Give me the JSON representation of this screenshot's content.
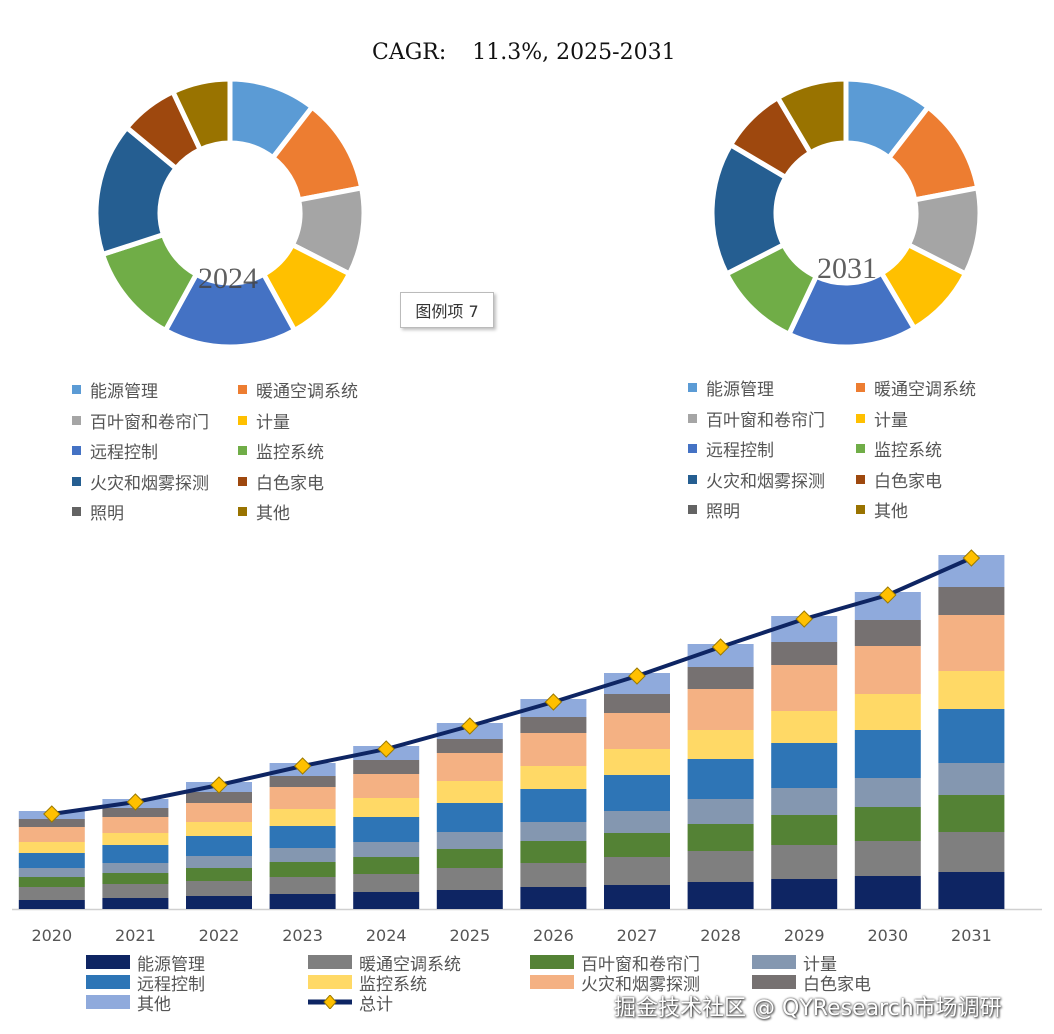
{
  "cagr": {
    "label": "CAGR:",
    "value": "11.3%, 2025-2031"
  },
  "tooltip": "图例项 7",
  "watermark": "掘金技术社区 @ QYResearch市场调研",
  "donut_legend": [
    {
      "label": "能源管理",
      "color": "#5b9bd5"
    },
    {
      "label": "暖通空调系统",
      "color": "#ed7d31"
    },
    {
      "label": "百叶窗和卷帘门",
      "color": "#a5a5a5"
    },
    {
      "label": "计量",
      "color": "#ffc000"
    },
    {
      "label": "远程控制",
      "color": "#4472c4"
    },
    {
      "label": "监控系统",
      "color": "#70ad47"
    },
    {
      "label": "火灾和烟雾探测",
      "color": "#255e91"
    },
    {
      "label": "白色家电",
      "color": "#9e480e"
    },
    {
      "label": "照明",
      "color": "#636363"
    },
    {
      "label": "其他",
      "color": "#997300"
    }
  ],
  "chart_data": [
    {
      "type": "pie",
      "title": "2024",
      "labels": [
        "能源管理",
        "暖通空调系统",
        "百叶窗和卷帘门",
        "计量",
        "远程控制",
        "监控系统",
        "火灾和烟雾探测",
        "白色家电",
        "照明",
        "其他"
      ],
      "values": [
        10.5,
        11.5,
        10.5,
        9.5,
        16,
        12,
        16,
        7,
        0,
        7
      ]
    },
    {
      "type": "pie",
      "title": "2031",
      "labels": [
        "能源管理",
        "暖通空调系统",
        "百叶窗和卷帘门",
        "计量",
        "远程控制",
        "监控系统",
        "火灾和烟雾探测",
        "白色家电",
        "照明",
        "其他"
      ],
      "values": [
        10.5,
        11.5,
        10.5,
        9,
        15.5,
        10.5,
        16,
        8,
        0,
        8.5
      ]
    },
    {
      "type": "bar",
      "stacked": true,
      "categories": [
        "2020",
        "2021",
        "2022",
        "2023",
        "2024",
        "2025",
        "2026",
        "2027",
        "2028",
        "2029",
        "2030",
        "2031"
      ],
      "series": [
        {
          "name": "能源管理",
          "color": "#0e2563",
          "values": [
            9,
            11,
            13,
            15,
            17,
            19,
            22,
            24,
            27,
            30,
            33,
            37
          ]
        },
        {
          "name": "暖通空调系统",
          "color": "#7f7f7f",
          "values": [
            13,
            14,
            15,
            17,
            18,
            22,
            24,
            28,
            31,
            34,
            35,
            40
          ]
        },
        {
          "name": "百叶窗和卷帘门",
          "color": "#548235",
          "values": [
            10,
            11,
            13,
            15,
            17,
            19,
            22,
            24,
            27,
            30,
            34,
            37
          ]
        },
        {
          "name": "计量",
          "color": "#8497b0",
          "values": [
            9,
            10,
            12,
            14,
            15,
            17,
            19,
            22,
            25,
            27,
            29,
            32
          ]
        },
        {
          "name": "远程控制",
          "color": "#2e75b6",
          "values": [
            15,
            18,
            20,
            22,
            25,
            29,
            33,
            36,
            40,
            45,
            48,
            54
          ]
        },
        {
          "name": "监控系统",
          "color": "#ffd966",
          "values": [
            11,
            12,
            14,
            17,
            19,
            22,
            23,
            26,
            29,
            32,
            36,
            38
          ]
        },
        {
          "name": "火灾和烟雾探测",
          "color": "#f4b183",
          "values": [
            15,
            16,
            19,
            22,
            24,
            28,
            33,
            36,
            41,
            46,
            48,
            56
          ]
        },
        {
          "name": "白色家电",
          "color": "#767171",
          "values": [
            8,
            9,
            11,
            11,
            14,
            14,
            16,
            19,
            22,
            23,
            26,
            28
          ]
        },
        {
          "name": "其他",
          "color": "#8faadc",
          "values": [
            8,
            9,
            10,
            13,
            14,
            16,
            18,
            21,
            23,
            26,
            28,
            32
          ]
        }
      ],
      "line": {
        "name": "总计",
        "color": "#0e2563",
        "marker_color": "#ffc000",
        "values": [
          98,
          110,
          127,
          146,
          163,
          186,
          210,
          236,
          265,
          293,
          317,
          354
        ]
      },
      "xlabel": "",
      "ylabel": "",
      "grid": false,
      "legend": "bottom"
    }
  ]
}
